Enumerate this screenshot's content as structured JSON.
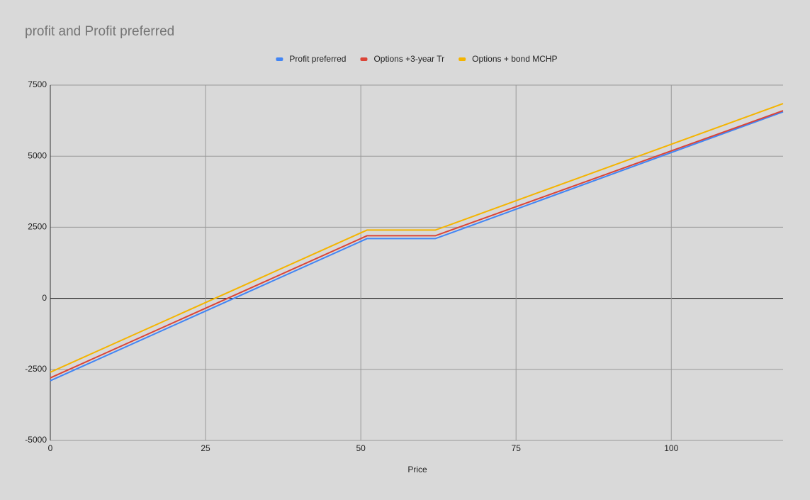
{
  "chart_data": {
    "type": "line",
    "title": "profit and Profit preferred",
    "x_label": "Price",
    "x": [
      0,
      51,
      62,
      118
    ],
    "series": [
      {
        "name": "Profit preferred",
        "color": "#4285f4",
        "values": [
          -2900,
          2100,
          2100,
          6560
        ]
      },
      {
        "name": "Options +3-year Tr",
        "color": "#db4437",
        "values": [
          -2800,
          2200,
          2200,
          6600
        ]
      },
      {
        "name": "Options + bond MCHP",
        "color": "#f4b400",
        "values": [
          -2600,
          2400,
          2400,
          6850
        ]
      }
    ],
    "xlim": [
      0,
      118
    ],
    "xticks": [
      0,
      25,
      50,
      75,
      100
    ],
    "ylim": [
      -5000,
      7500
    ],
    "yticks": [
      -5000,
      -2500,
      0,
      2500,
      5000,
      7500
    ],
    "grid": true,
    "legend": "top"
  }
}
